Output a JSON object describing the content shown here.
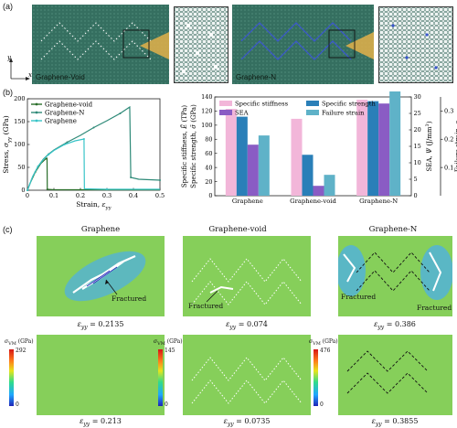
{
  "panel_labels": {
    "a": "(a)",
    "b": "(b)",
    "c": "(c)"
  },
  "panel_a": {
    "sheet_void_label": "Graphene-Void",
    "sheet_n_label": "Graphene-N",
    "axis_y": "y",
    "axis_x": "x",
    "colors": {
      "sheet": "#356f60",
      "n_pattern": "#3b56d0",
      "crack_tip": "#e3b14a"
    }
  },
  "panel_b": {
    "charts": [
      {
        "type": "line",
        "xlabel_text": "Strain, ",
        "xlabel_sym": "ε",
        "xlabel_sub": "yy",
        "ylabel_text": "Stress, ",
        "ylabel_sym": "σ",
        "ylabel_sub": "yy",
        "ylabel_unit": " (GPa)",
        "xlim": [
          0,
          0.5
        ],
        "ylim": [
          0,
          200
        ],
        "xticks": [
          "0",
          "0.1",
          "0.2",
          "0.3",
          "0.4",
          "0.5"
        ],
        "yticks": [
          "0",
          "50",
          "100",
          "150",
          "200"
        ],
        "legend": "top-left",
        "series": [
          {
            "name": "Graphene-void",
            "color": "#2a6e2a",
            "x": [
              0,
              0.01,
              0.03,
              0.05,
              0.07,
              0.074,
              0.075,
              0.1,
              0.2,
              0.3,
              0.4,
              0.5
            ],
            "y": [
              0,
              15,
              40,
              58,
              69,
              70,
              2,
              1,
              1,
              1,
              1,
              1
            ]
          },
          {
            "name": "Graphene-N",
            "color": "#2e8a78",
            "x": [
              0,
              0.02,
              0.04,
              0.06,
              0.08,
              0.1,
              0.15,
              0.2,
              0.25,
              0.3,
              0.35,
              0.386,
              0.39,
              0.42,
              0.5
            ],
            "y": [
              0,
              30,
              52,
              68,
              79,
              88,
              105,
              120,
              137,
              152,
              168,
              182,
              28,
              24,
              22
            ]
          },
          {
            "name": "Graphene",
            "color": "#38c4c8",
            "x": [
              0,
              0.02,
              0.04,
              0.06,
              0.08,
              0.1,
              0.14,
              0.18,
              0.2135,
              0.215,
              0.3,
              0.5
            ],
            "y": [
              0,
              30,
              52,
              67,
              78,
              87,
              100,
              108,
              112,
              3,
              2,
              2
            ]
          }
        ]
      },
      {
        "type": "bar",
        "categories": [
          "Graphene",
          "Graphene-void",
          "Graphene-N"
        ],
        "ylabel_text": "Specific stiffness, ",
        "ylabel_sym": "Ē",
        "ylabel_unit": " (TPa)",
        "ylabel2_text": "Specific strength, ",
        "ylabel2_sym": "σ̄",
        "ylabel2_unit": " (GPa)",
        "ylim_left": [
          0,
          140
        ],
        "yticks_left": [
          "0",
          "20",
          "40",
          "60",
          "80",
          "100",
          "120",
          "140"
        ],
        "ylabel_right1_text": "SEA, ",
        "ylabel_right1_sym": "Ψ",
        "ylabel_right1_unit": " (J/mm",
        "ylabel_right1_sup": "3",
        "ylim_right1": [
          0,
          30
        ],
        "yticks_right1": [
          "0",
          "5",
          "10",
          "15",
          "20",
          "25",
          "30"
        ],
        "ylabel_right2_text": "Failure strain, ",
        "ylabel_right2_sym": "ε",
        "ylim_right2": [
          0,
          0.35
        ],
        "yticks_right2": [
          "0.1",
          "0.2",
          "0.3"
        ],
        "legend": "top",
        "series": [
          {
            "name": "Specific stiffness",
            "axis": "left",
            "color": "#f2b6d9",
            "values": [
              123,
              109,
              136
            ]
          },
          {
            "name": "Specific strength",
            "axis": "left",
            "color": "#2a7fb8",
            "values": [
              112,
              58,
              134
            ]
          },
          {
            "name": "SEA",
            "axis": "right1",
            "color": "#8a5cc4",
            "values": [
              15.5,
              3.0,
              28.0
            ]
          },
          {
            "name": "Failure strain",
            "axis": "right2",
            "color": "#5fb2c8",
            "values": [
              0.2135,
              0.074,
              0.386
            ]
          }
        ]
      }
    ]
  },
  "panel_c": {
    "columns": [
      {
        "title": "Graphene",
        "strain_fractured": "ε",
        "strain_fractured_sub": "yy",
        "strain_fractured_val": " = 0.2135",
        "strain_pre": "ε",
        "strain_pre_sub": "yy",
        "strain_pre_val": " = 0.213",
        "cbar_max": "292",
        "cbar_min": "0"
      },
      {
        "title": "Graphene-void",
        "strain_fractured": "ε",
        "strain_fractured_sub": "yy",
        "strain_fractured_val": " = 0.074",
        "strain_pre": "ε",
        "strain_pre_sub": "yy",
        "strain_pre_val": " = 0.0735",
        "cbar_max": "145",
        "cbar_min": "0"
      },
      {
        "title": "Graphene-N",
        "strain_fractured": "ε",
        "strain_fractured_sub": "yy",
        "strain_fractured_val": " = 0.386",
        "strain_pre": "ε",
        "strain_pre_sub": "yy",
        "strain_pre_val": " = 0.3855",
        "cbar_max": "476",
        "cbar_min": "0"
      }
    ],
    "fractured_label": "Fractured",
    "cbar_title_sym": "σ",
    "cbar_title_sub": "VM",
    "cbar_title_unit": " (GPa)"
  }
}
